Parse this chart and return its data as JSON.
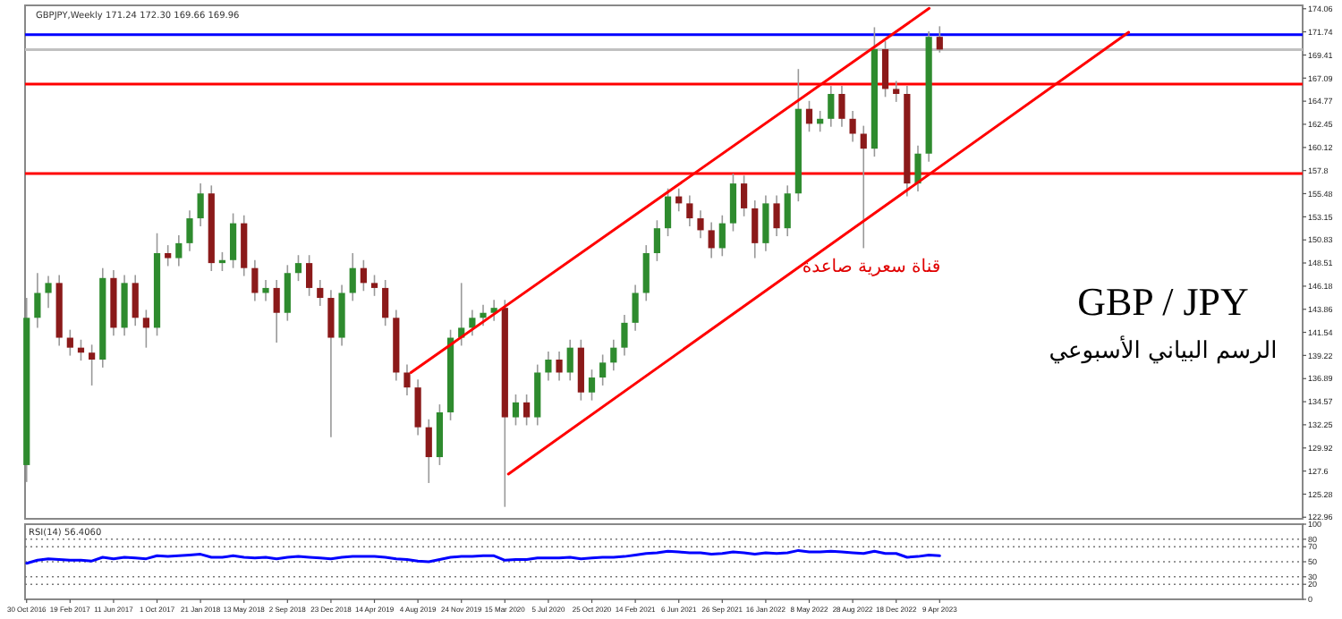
{
  "chart_data": [
    {
      "type": "candlestick",
      "title": "GBP / JPY",
      "subtitle": "الرسم البياني الأسبوعي",
      "annotations": [
        "GBPJPY,Weekly 171.24 172.30 169.66 169.96",
        "قناة سعرية صاعدة"
      ],
      "x": [
        "2016-10-30",
        "2016-11-27",
        "2016-12-25",
        "2017-01-22",
        "2017-02-19",
        "2017-03-19",
        "2017-04-16",
        "2017-05-14",
        "2017-06-11",
        "2017-07-09",
        "2017-08-06",
        "2017-09-03",
        "2017-10-01",
        "2017-10-29",
        "2017-11-26",
        "2017-12-24",
        "2018-01-21",
        "2018-02-18",
        "2018-03-18",
        "2018-04-15",
        "2018-05-13",
        "2018-06-10",
        "2018-07-08",
        "2018-08-05",
        "2018-09-02",
        "2018-09-30",
        "2018-10-28",
        "2018-11-25",
        "2018-12-23",
        "2019-01-20",
        "2019-02-17",
        "2019-03-17",
        "2019-04-14",
        "2019-05-12",
        "2019-06-09",
        "2019-07-07",
        "2019-08-04",
        "2019-09-01",
        "2019-09-29",
        "2019-10-27",
        "2019-11-24",
        "2019-12-22",
        "2020-01-19",
        "2020-02-16",
        "2020-03-15",
        "2020-04-12",
        "2020-05-10",
        "2020-06-07",
        "2020-07-05",
        "2020-08-02",
        "2020-08-30",
        "2020-09-27",
        "2020-10-25",
        "2020-11-22",
        "2020-12-20",
        "2021-01-17",
        "2021-02-14",
        "2021-03-14",
        "2021-04-11",
        "2021-05-09",
        "2021-06-06",
        "2021-07-04",
        "2021-08-01",
        "2021-08-29",
        "2021-09-26",
        "2021-10-24",
        "2021-11-21",
        "2021-12-19",
        "2022-01-16",
        "2022-02-13",
        "2022-03-13",
        "2022-04-10",
        "2022-05-08",
        "2022-06-05",
        "2022-07-03",
        "2022-07-31",
        "2022-08-28",
        "2022-09-25",
        "2022-10-23",
        "2022-11-20",
        "2022-12-18",
        "2023-01-15",
        "2023-02-12",
        "2023-03-12",
        "2023-04-09"
      ],
      "ohlc": [
        [
          128.2,
          145.0,
          126.5,
          143.0
        ],
        [
          143.0,
          147.5,
          142.0,
          145.5
        ],
        [
          145.5,
          147.2,
          144.0,
          146.5
        ],
        [
          146.5,
          147.3,
          140.2,
          141.0
        ],
        [
          141.0,
          141.8,
          139.2,
          140.0
        ],
        [
          140.0,
          140.8,
          138.7,
          139.5
        ],
        [
          139.5,
          140.3,
          136.2,
          138.8
        ],
        [
          138.8,
          148.0,
          138.0,
          147.0
        ],
        [
          147.0,
          147.8,
          141.2,
          142.0
        ],
        [
          142.0,
          147.3,
          141.2,
          146.5
        ],
        [
          146.5,
          147.3,
          142.2,
          143.0
        ],
        [
          143.0,
          143.8,
          140.0,
          142.0
        ],
        [
          142.0,
          151.5,
          141.2,
          149.5
        ],
        [
          149.5,
          150.3,
          148.2,
          149.0
        ],
        [
          149.0,
          151.3,
          148.2,
          150.5
        ],
        [
          150.5,
          153.8,
          149.7,
          153.0
        ],
        [
          153.0,
          156.5,
          152.2,
          155.5
        ],
        [
          155.5,
          156.3,
          147.7,
          148.5
        ],
        [
          148.5,
          149.6,
          147.7,
          148.8
        ],
        [
          148.8,
          153.5,
          148.0,
          152.5
        ],
        [
          152.5,
          153.3,
          147.2,
          148.0
        ],
        [
          148.0,
          148.8,
          144.7,
          145.5
        ],
        [
          145.5,
          146.8,
          144.7,
          146.0
        ],
        [
          146.0,
          146.8,
          140.5,
          143.5
        ],
        [
          143.5,
          148.3,
          142.7,
          147.5
        ],
        [
          147.5,
          149.3,
          146.7,
          148.5
        ],
        [
          148.5,
          149.3,
          145.2,
          146.0
        ],
        [
          146.0,
          146.8,
          144.2,
          145.0
        ],
        [
          145.0,
          145.8,
          131.0,
          141.0
        ],
        [
          141.0,
          146.3,
          140.2,
          145.5
        ],
        [
          145.5,
          149.5,
          144.7,
          148.0
        ],
        [
          148.0,
          148.8,
          145.7,
          146.5
        ],
        [
          146.5,
          147.3,
          145.2,
          146.0
        ],
        [
          146.0,
          146.8,
          142.2,
          143.0
        ],
        [
          143.0,
          143.8,
          136.7,
          137.5
        ],
        [
          137.5,
          138.3,
          135.2,
          136.0
        ],
        [
          136.0,
          136.8,
          131.2,
          132.0
        ],
        [
          132.0,
          132.8,
          126.4,
          129.0
        ],
        [
          129.0,
          134.3,
          128.2,
          133.5
        ],
        [
          133.5,
          141.8,
          132.7,
          141.0
        ],
        [
          141.0,
          146.5,
          140.2,
          142.0
        ],
        [
          142.0,
          143.8,
          141.2,
          143.0
        ],
        [
          143.0,
          144.3,
          142.2,
          143.5
        ],
        [
          143.5,
          144.8,
          142.7,
          144.0
        ],
        [
          144.0,
          144.8,
          124.0,
          133.0
        ],
        [
          133.0,
          135.3,
          132.2,
          134.5
        ],
        [
          134.5,
          135.3,
          132.2,
          133.0
        ],
        [
          133.0,
          138.3,
          132.2,
          137.5
        ],
        [
          137.5,
          139.6,
          136.7,
          138.8
        ],
        [
          138.8,
          139.6,
          136.7,
          137.5
        ],
        [
          137.5,
          140.8,
          136.7,
          140.0
        ],
        [
          140.0,
          140.8,
          134.7,
          135.5
        ],
        [
          135.5,
          137.8,
          134.7,
          137.0
        ],
        [
          137.0,
          139.3,
          136.2,
          138.5
        ],
        [
          138.5,
          140.8,
          137.7,
          140.0
        ],
        [
          140.0,
          143.3,
          139.2,
          142.5
        ],
        [
          142.5,
          146.3,
          141.7,
          145.5
        ],
        [
          145.5,
          150.3,
          144.7,
          149.5
        ],
        [
          149.5,
          152.8,
          148.7,
          152.0
        ],
        [
          152.0,
          156.0,
          151.2,
          155.2
        ],
        [
          155.2,
          156.0,
          153.7,
          154.5
        ],
        [
          154.5,
          155.3,
          152.2,
          153.0
        ],
        [
          153.0,
          153.8,
          151.0,
          151.8
        ],
        [
          151.8,
          152.6,
          149.0,
          150.0
        ],
        [
          150.0,
          153.3,
          149.2,
          152.5
        ],
        [
          152.5,
          157.5,
          151.7,
          156.5
        ],
        [
          156.5,
          157.3,
          153.2,
          154.0
        ],
        [
          154.0,
          154.8,
          149.0,
          150.5
        ],
        [
          150.5,
          155.3,
          149.7,
          154.5
        ],
        [
          154.5,
          155.3,
          151.2,
          152.0
        ],
        [
          152.0,
          156.3,
          151.2,
          155.5
        ],
        [
          155.5,
          168.0,
          154.7,
          164.0
        ],
        [
          164.0,
          164.8,
          161.7,
          162.5
        ],
        [
          162.5,
          163.8,
          161.7,
          163.0
        ],
        [
          163.0,
          166.3,
          162.2,
          165.5
        ],
        [
          165.5,
          166.3,
          162.2,
          163.0
        ],
        [
          163.0,
          163.8,
          160.7,
          161.5
        ],
        [
          161.5,
          162.3,
          150.0,
          160.0
        ],
        [
          160.0,
          172.2,
          159.2,
          170.0
        ],
        [
          170.0,
          170.8,
          165.2,
          166.0
        ],
        [
          166.0,
          166.8,
          164.7,
          165.5
        ],
        [
          165.5,
          166.3,
          155.2,
          156.5
        ],
        [
          156.5,
          160.3,
          155.7,
          159.5
        ],
        [
          159.5,
          171.8,
          158.7,
          171.24
        ],
        [
          171.24,
          172.3,
          169.66,
          169.96
        ]
      ],
      "series": [
        {
          "type": "line",
          "color": "#ff0000",
          "x": [
            "2019-07-17",
            "2023-03-13"
          ],
          "values": [
            137.5,
            174.1
          ]
        },
        {
          "type": "line",
          "color": "#ff0000",
          "x": [
            "2020-03-24",
            "2024-08-08"
          ],
          "values": [
            127.3,
            171.7
          ]
        }
      ],
      "ref_lines": [
        {
          "axis": "y",
          "value": 171.45,
          "color": "#0000ff"
        },
        {
          "axis": "y",
          "value": 169.96,
          "color": "#c0c0c0"
        },
        {
          "axis": "y",
          "value": 166.5,
          "color": "#ff0000"
        },
        {
          "axis": "y",
          "value": 157.5,
          "color": "#ff0000"
        }
      ],
      "xlim": [
        "2016-10-26",
        "2025-10-30"
      ],
      "ylim": [
        122.8,
        174.4
      ],
      "yticks": [
        174.06,
        171.74,
        169.41,
        167.09,
        164.77,
        162.45,
        160.12,
        157.8,
        155.48,
        153.15,
        150.83,
        148.51,
        146.18,
        143.86,
        141.54,
        139.22,
        136.89,
        134.57,
        132.25,
        129.92,
        127.6,
        125.28,
        122.96
      ],
      "tick_labels": "y"
    },
    {
      "type": "line",
      "title": "RSI(14) 56.4060",
      "color": "#0000ff",
      "x": [
        "2016-10-30",
        "2016-11-27",
        "2016-12-25",
        "2017-01-22",
        "2017-02-19",
        "2017-03-19",
        "2017-04-16",
        "2017-05-14",
        "2017-06-11",
        "2017-07-09",
        "2017-08-06",
        "2017-09-03",
        "2017-10-01",
        "2017-10-29",
        "2017-11-26",
        "2017-12-24",
        "2018-01-21",
        "2018-02-18",
        "2018-03-18",
        "2018-04-15",
        "2018-05-13",
        "2018-06-10",
        "2018-07-08",
        "2018-08-05",
        "2018-09-02",
        "2018-09-30",
        "2018-10-28",
        "2018-11-25",
        "2018-12-23",
        "2019-01-20",
        "2019-02-17",
        "2019-03-17",
        "2019-04-14",
        "2019-05-12",
        "2019-06-09",
        "2019-07-07",
        "2019-08-04",
        "2019-09-01",
        "2019-09-29",
        "2019-10-27",
        "2019-11-24",
        "2019-12-22",
        "2020-01-19",
        "2020-02-16",
        "2020-03-15",
        "2020-04-12",
        "2020-05-10",
        "2020-06-07",
        "2020-07-05",
        "2020-08-02",
        "2020-08-30",
        "2020-09-27",
        "2020-10-25",
        "2020-11-22",
        "2020-12-20",
        "2021-01-17",
        "2021-02-14",
        "2021-03-14",
        "2021-04-11",
        "2021-05-09",
        "2021-06-06",
        "2021-07-04",
        "2021-08-01",
        "2021-08-29",
        "2021-09-26",
        "2021-10-24",
        "2021-11-21",
        "2021-12-19",
        "2022-01-16",
        "2022-02-13",
        "2022-03-13",
        "2022-04-10",
        "2022-05-08",
        "2022-06-05",
        "2022-07-03",
        "2022-07-31",
        "2022-08-28",
        "2022-09-25",
        "2022-10-23",
        "2022-11-20",
        "2022-12-18",
        "2023-01-15",
        "2023-02-12",
        "2023-03-12",
        "2023-04-09"
      ],
      "values": [
        48,
        52,
        54,
        53,
        52,
        52,
        51,
        56,
        54,
        56,
        55,
        54,
        58,
        57,
        58,
        59,
        60,
        56,
        56,
        58,
        56,
        55,
        56,
        54,
        56,
        57,
        56,
        55,
        54,
        56,
        57,
        57,
        57,
        56,
        54,
        53,
        51,
        50,
        53,
        56,
        57,
        57,
        58,
        58,
        52,
        53,
        53,
        55,
        55,
        55,
        56,
        54,
        55,
        56,
        56,
        57,
        59,
        61,
        62,
        64,
        63,
        62,
        62,
        60,
        61,
        63,
        62,
        60,
        62,
        61,
        62,
        65,
        63,
        63,
        64,
        63,
        62,
        61,
        64,
        61,
        61,
        56,
        57,
        59,
        58
      ],
      "ref_lines": [
        {
          "axis": "y",
          "value": 80,
          "line_style": "dotted"
        },
        {
          "axis": "y",
          "value": 70,
          "line_style": "dotted"
        },
        {
          "axis": "y",
          "value": 50,
          "line_style": "dotted"
        },
        {
          "axis": "y",
          "value": 30,
          "line_style": "dotted"
        },
        {
          "axis": "y",
          "value": 20,
          "line_style": "dotted"
        }
      ],
      "xlim": [
        "2016-10-26",
        "2025-10-30"
      ],
      "ylim": [
        0,
        100
      ],
      "yticks": [
        100,
        80,
        70,
        50,
        30,
        20,
        0
      ],
      "xticks": [
        {
          "value": "2016-10-30",
          "label": "30 Oct 2016"
        },
        {
          "value": "2017-02-19",
          "label": "19 Feb 2017"
        },
        {
          "value": "2017-06-11",
          "label": "11 Jun 2017"
        },
        {
          "value": "2017-10-01",
          "label": "1 Oct 2017"
        },
        {
          "value": "2018-01-21",
          "label": "21 Jan 2018"
        },
        {
          "value": "2018-05-13",
          "label": "13 May 2018"
        },
        {
          "value": "2018-09-02",
          "label": "2 Sep 2018"
        },
        {
          "value": "2018-12-23",
          "label": "23 Dec 2018"
        },
        {
          "value": "2019-04-14",
          "label": "14 Apr 2019"
        },
        {
          "value": "2019-08-04",
          "label": "4 Aug 2019"
        },
        {
          "value": "2019-11-24",
          "label": "24 Nov 2019"
        },
        {
          "value": "2020-03-15",
          "label": "15 Mar 2020"
        },
        {
          "value": "2020-07-05",
          "label": "5 Jul 2020"
        },
        {
          "value": "2020-10-25",
          "label": "25 Oct 2020"
        },
        {
          "value": "2021-02-14",
          "label": "14 Feb 2021"
        },
        {
          "value": "2021-06-06",
          "label": "6 Jun 2021"
        },
        {
          "value": "2021-09-26",
          "label": "26 Sep 2021"
        },
        {
          "value": "2022-01-16",
          "label": "16 Jan 2022"
        },
        {
          "value": "2022-05-08",
          "label": "8 May 2022"
        },
        {
          "value": "2022-08-28",
          "label": "28 Aug 2022"
        },
        {
          "value": "2022-12-18",
          "label": "18 Dec 2022"
        },
        {
          "value": "2023-04-09",
          "label": "9 Apr 2023"
        }
      ]
    }
  ]
}
